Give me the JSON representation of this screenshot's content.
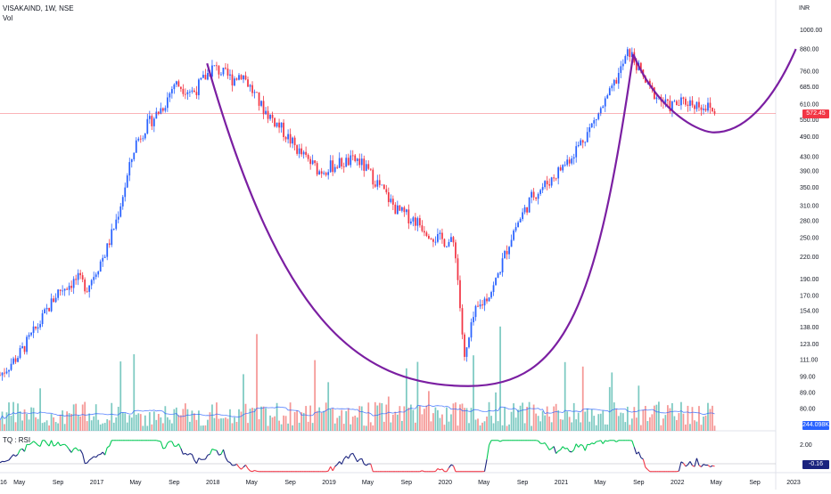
{
  "header": {
    "symbol_label": "VISAKAIND, 1W, NSE",
    "volume_label": "Vol",
    "currency": "INR"
  },
  "indicator": {
    "label": "TQ : RSI",
    "last_value": "-0.16"
  },
  "price_tag": {
    "value": "572.45",
    "color": "#f23645"
  },
  "volume_tag": {
    "value": "244.098K",
    "color": "#2962ff"
  },
  "colors": {
    "up": "#2962ff",
    "down": "#f23645",
    "pattern": "#7b1fa2",
    "vol_up": "#26a69a",
    "vol_down": "#ef5350"
  },
  "chart_data": {
    "type": "candlestick",
    "log_scale": true,
    "price_ticks": [
      "1000.00",
      "880.00",
      "760.00",
      "685.00",
      "610.00",
      "550.00",
      "490.00",
      "430.00",
      "390.00",
      "350.00",
      "310.00",
      "280.00",
      "250.00",
      "220.00",
      "190.00",
      "170.00",
      "154.00",
      "138.00",
      "123.00",
      "111.00",
      "99.00",
      "89.00",
      "80.00"
    ],
    "x_ticks": [
      "May",
      "Sep",
      "2017",
      "May",
      "Sep",
      "2018",
      "May",
      "Sep",
      "2019",
      "May",
      "Sep",
      "2020",
      "May",
      "Sep",
      "2021",
      "May",
      "Sep",
      "2022",
      "May",
      "Sep",
      "2023"
    ],
    "x_start_label": "16",
    "rsi_ticks": [
      "2.00"
    ],
    "price_series": [
      {
        "t": "2016-03",
        "v": 100
      },
      {
        "t": "2016-05",
        "v": 115
      },
      {
        "t": "2016-07",
        "v": 140
      },
      {
        "t": "2016-09",
        "v": 175
      },
      {
        "t": "2016-11",
        "v": 190
      },
      {
        "t": "2016-12",
        "v": 180
      },
      {
        "t": "2017-02",
        "v": 230
      },
      {
        "t": "2017-03",
        "v": 280
      },
      {
        "t": "2017-04",
        "v": 360
      },
      {
        "t": "2017-05",
        "v": 470
      },
      {
        "t": "2017-06",
        "v": 520
      },
      {
        "t": "2017-08",
        "v": 610
      },
      {
        "t": "2017-09",
        "v": 700
      },
      {
        "t": "2017-11",
        "v": 660
      },
      {
        "t": "2018-01",
        "v": 780
      },
      {
        "t": "2018-03",
        "v": 720
      },
      {
        "t": "2018-04",
        "v": 750
      },
      {
        "t": "2018-06",
        "v": 600
      },
      {
        "t": "2018-08",
        "v": 520
      },
      {
        "t": "2018-10",
        "v": 440
      },
      {
        "t": "2018-12",
        "v": 390
      },
      {
        "t": "2019-02",
        "v": 410
      },
      {
        "t": "2019-04",
        "v": 420
      },
      {
        "t": "2019-06",
        "v": 360
      },
      {
        "t": "2019-08",
        "v": 300
      },
      {
        "t": "2019-10",
        "v": 280
      },
      {
        "t": "2019-12",
        "v": 250
      },
      {
        "t": "2020-02",
        "v": 240
      },
      {
        "t": "2020-03",
        "v": 110
      },
      {
        "t": "2020-04",
        "v": 150
      },
      {
        "t": "2020-06",
        "v": 180
      },
      {
        "t": "2020-08",
        "v": 260
      },
      {
        "t": "2020-10",
        "v": 330
      },
      {
        "t": "2020-12",
        "v": 370
      },
      {
        "t": "2021-02",
        "v": 430
      },
      {
        "t": "2021-04",
        "v": 520
      },
      {
        "t": "2021-06",
        "v": 650
      },
      {
        "t": "2021-08",
        "v": 870
      },
      {
        "t": "2021-10",
        "v": 680
      },
      {
        "t": "2021-12",
        "v": 600
      },
      {
        "t": "2022-02",
        "v": 620
      },
      {
        "t": "2022-04",
        "v": 600
      },
      {
        "t": "2022-05",
        "v": 572.45
      }
    ],
    "pattern": "cup and handle"
  }
}
